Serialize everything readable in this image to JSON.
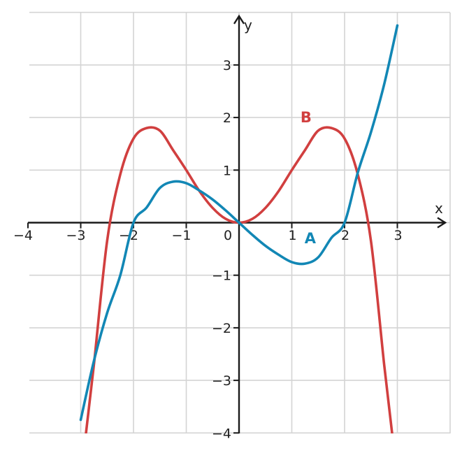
{
  "chart_data": {
    "type": "line",
    "title": "",
    "xlabel": "x",
    "ylabel": "y",
    "xlim": [
      -4,
      4
    ],
    "ylim": [
      -4,
      4
    ],
    "grid": true,
    "x_ticks": [
      {
        "value": -4,
        "label": "−4"
      },
      {
        "value": -3,
        "label": "−3"
      },
      {
        "value": -2,
        "label": "−2"
      },
      {
        "value": -1,
        "label": "−1"
      },
      {
        "value": 0,
        "label": "0"
      },
      {
        "value": 1,
        "label": "1"
      },
      {
        "value": 2,
        "label": "2"
      },
      {
        "value": 3,
        "label": "3"
      }
    ],
    "y_ticks": [
      {
        "value": 3,
        "label": "3"
      },
      {
        "value": 2,
        "label": "2"
      },
      {
        "value": 1,
        "label": "1"
      },
      {
        "value": -1,
        "label": "−1"
      },
      {
        "value": -2,
        "label": "−2"
      },
      {
        "value": -3,
        "label": "−3"
      },
      {
        "value": -4,
        "label": "−4"
      }
    ],
    "series": [
      {
        "name": "A",
        "color": "#1287b5",
        "x": [
          -3,
          -2.75,
          -2.5,
          -2.25,
          -2,
          -1.75,
          -1.5,
          -1.25,
          -1,
          -0.75,
          -0.5,
          -0.25,
          0,
          0.25,
          0.5,
          0.75,
          1,
          1.25,
          1.5,
          1.75,
          2,
          2.25,
          2.5,
          2.75,
          3
        ],
        "y": [
          -3.75,
          -2.63,
          -1.72,
          -1.0,
          0.0,
          0.29,
          0.66,
          0.78,
          0.75,
          0.61,
          0.44,
          0.23,
          0.0,
          -0.23,
          -0.44,
          -0.61,
          -0.75,
          -0.78,
          -0.66,
          -0.29,
          0.0,
          0.95,
          1.72,
          2.63,
          3.75
        ]
      },
      {
        "name": "B",
        "color": "#d13f3f",
        "x": [
          -2.9,
          -2.75,
          -2.5,
          -2.25,
          -2,
          -1.75,
          -1.5,
          -1.25,
          -1,
          -0.75,
          -0.5,
          -0.25,
          0,
          0.25,
          0.5,
          0.75,
          1,
          1.25,
          1.5,
          1.75,
          2,
          2.25,
          2.5,
          2.75,
          2.9
        ],
        "y": [
          -4.0,
          -2.7,
          -0.35,
          0.92,
          1.6,
          1.8,
          1.75,
          1.38,
          1.0,
          0.6,
          0.28,
          0.07,
          0.0,
          0.07,
          0.28,
          0.6,
          1.0,
          1.38,
          1.75,
          1.8,
          1.6,
          0.92,
          -0.35,
          -2.7,
          -4.0
        ]
      }
    ],
    "annotations": [
      {
        "text": "A",
        "series": "A",
        "x": 1.35,
        "y": -0.3
      },
      {
        "text": "B",
        "series": "B",
        "x": 1.27,
        "y": 2.0
      }
    ]
  }
}
